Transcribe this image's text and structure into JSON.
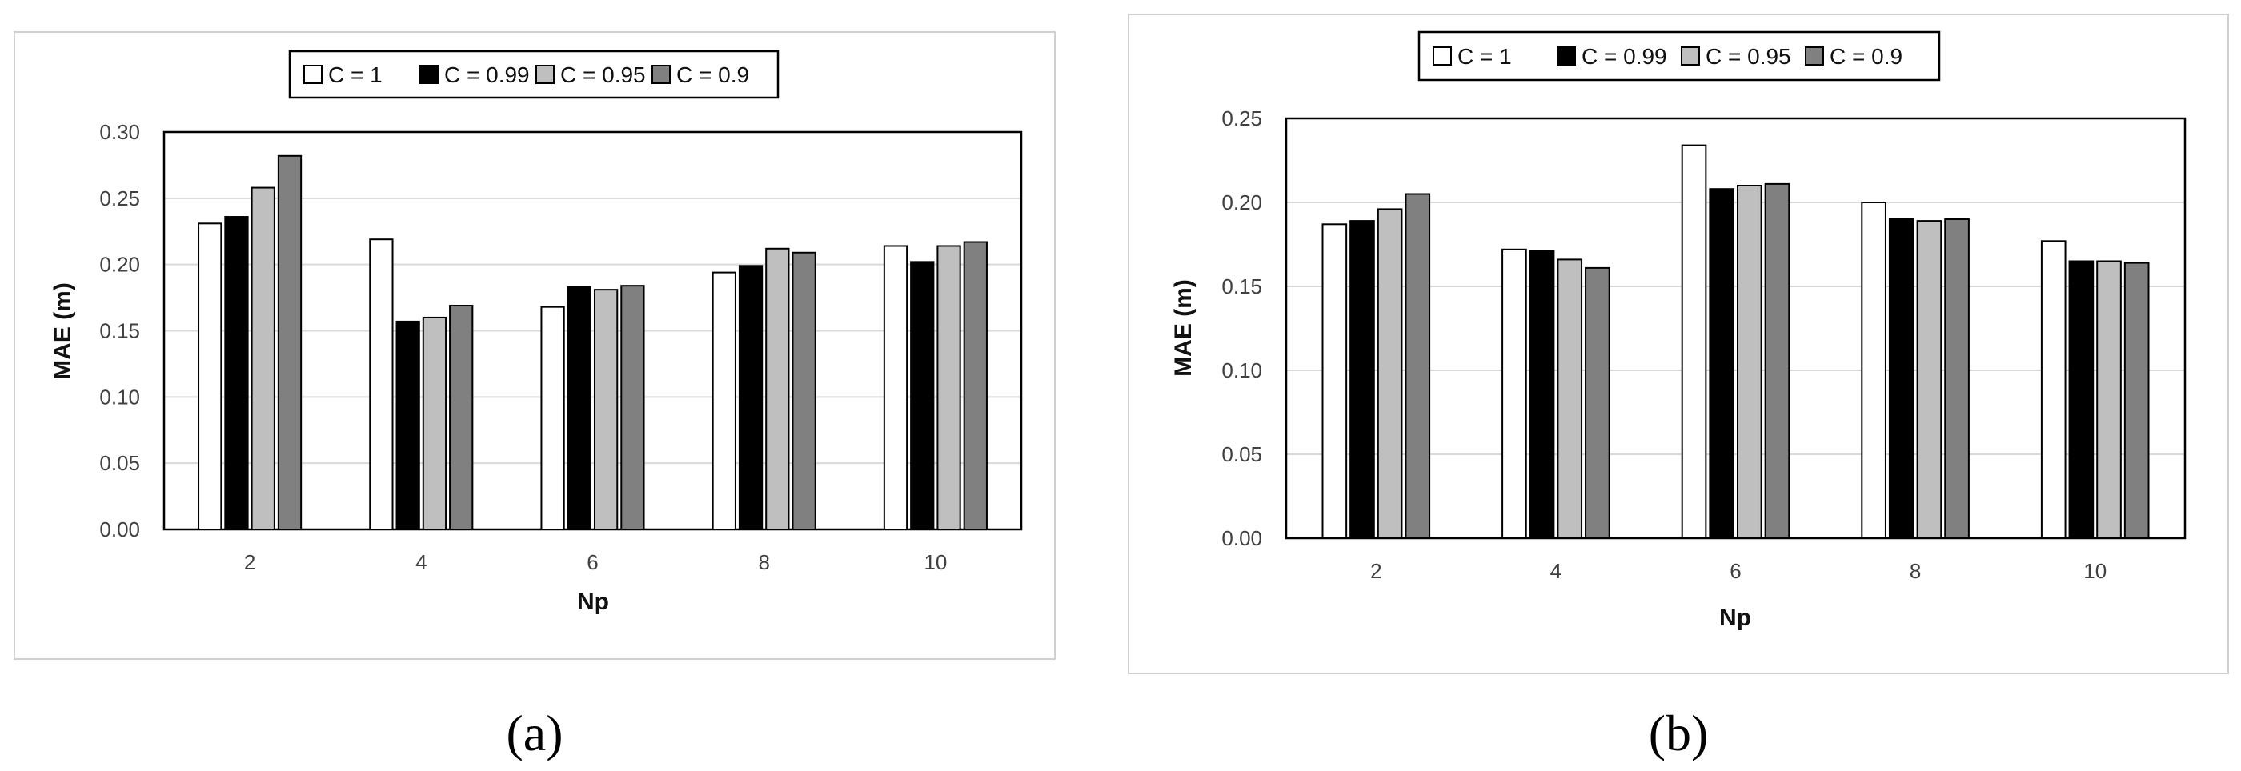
{
  "colors": {
    "C = 1": "#ffffff",
    "C = 0.99": "#000000",
    "C = 0.95": "#bfbfbf",
    "C = 0.9": "#808080",
    "gridline": "#d9d9d9",
    "frame": "#d0d0d0"
  },
  "chart_data": [
    {
      "type": "bar",
      "panel_label": "(a)",
      "categories": [
        "2",
        "4",
        "6",
        "8",
        "10"
      ],
      "series": [
        {
          "name": "C = 1",
          "values": [
            0.231,
            0.219,
            0.168,
            0.194,
            0.214
          ]
        },
        {
          "name": "C = 0.99",
          "values": [
            0.236,
            0.157,
            0.183,
            0.199,
            0.202
          ]
        },
        {
          "name": "C = 0.95",
          "values": [
            0.258,
            0.16,
            0.181,
            0.212,
            0.214
          ]
        },
        {
          "name": "C = 0.9",
          "values": [
            0.282,
            0.169,
            0.184,
            0.209,
            0.217
          ]
        }
      ],
      "xlabel": "Np",
      "ylabel": "MAE (m)",
      "ylim": [
        0,
        0.3
      ],
      "yticks": [
        "0.00",
        "0.05",
        "0.10",
        "0.15",
        "0.20",
        "0.25",
        "0.30"
      ],
      "grid": true,
      "legend": "top"
    },
    {
      "type": "bar",
      "panel_label": "(b)",
      "categories": [
        "2",
        "4",
        "6",
        "8",
        "10"
      ],
      "series": [
        {
          "name": "C = 1",
          "values": [
            0.187,
            0.172,
            0.234,
            0.2,
            0.177
          ]
        },
        {
          "name": "C = 0.99",
          "values": [
            0.189,
            0.171,
            0.208,
            0.19,
            0.165
          ]
        },
        {
          "name": "C = 0.95",
          "values": [
            0.196,
            0.166,
            0.21,
            0.189,
            0.165
          ]
        },
        {
          "name": "C = 0.9",
          "values": [
            0.205,
            0.161,
            0.211,
            0.19,
            0.164
          ]
        }
      ],
      "xlabel": "Np",
      "ylabel": "MAE (m)",
      "ylim": [
        0,
        0.25
      ],
      "yticks": [
        "0.00",
        "0.05",
        "0.10",
        "0.15",
        "0.20",
        "0.25"
      ],
      "grid": true,
      "legend": "top"
    }
  ]
}
